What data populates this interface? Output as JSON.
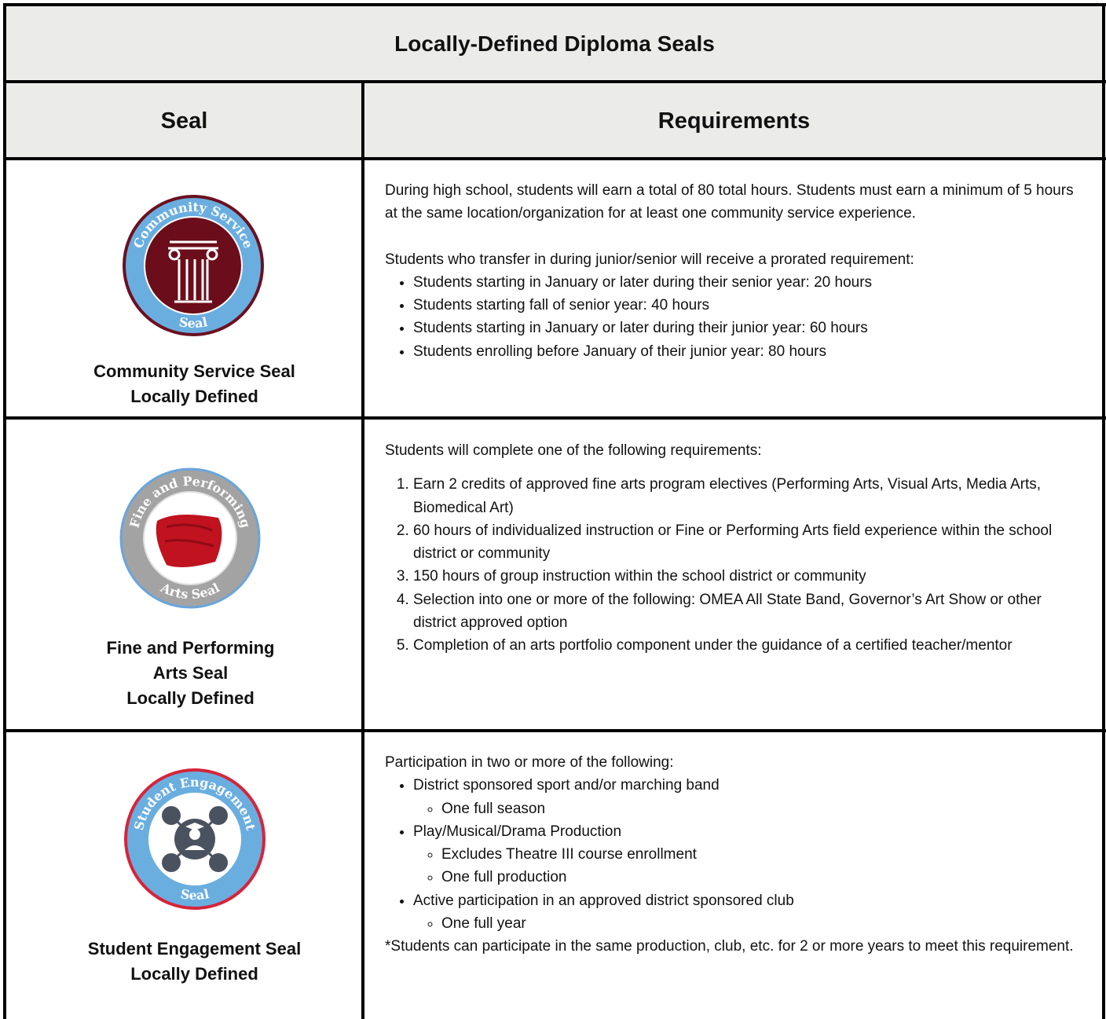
{
  "title": "Locally-Defined Diploma Seals",
  "columns": [
    "Seal",
    "Requirements"
  ],
  "rows": [
    {
      "badge": {
        "top": "Community Service",
        "bottom": "Seal"
      },
      "name": [
        "Community Service Seal",
        "Locally Defined"
      ],
      "requirements": {
        "paragraph": "During high school, students will earn a total of 80 total hours. Students must earn a minimum of 5 hours at the same location/organization for at least one community service experience.",
        "intro": "Students who transfer in during junior/senior will receive a prorated requirement:",
        "items": [
          "Students starting in January or later during their senior year: 20 hours",
          "Students starting fall of senior year: 40 hours",
          "Students starting in January or later during their junior year: 60 hours",
          "Students enrolling before January of their junior year: 80 hours"
        ]
      }
    },
    {
      "badge": {
        "top": "Fine and Performing",
        "bottom": "Arts Seal"
      },
      "name": [
        "Fine and Performing",
        "Arts Seal",
        "Locally Defined"
      ],
      "requirements": {
        "intro": "Students will complete one of the following requirements:",
        "items": [
          "Earn 2 credits of approved fine arts program electives (Performing Arts, Visual Arts, Media Arts, Biomedical Art)",
          "60 hours of individualized instruction or Fine or Performing Arts field experience within the school district or community",
          "150 hours of group instruction within the school district or community",
          "Selection into one or more of the following: OMEA All State Band, Governor’s Art Show or other district approved option",
          "Completion of an arts portfolio component under the guidance of a certified teacher/mentor"
        ]
      }
    },
    {
      "badge": {
        "top": "Student Engagement",
        "bottom": "Seal"
      },
      "name": [
        "Student Engagement Seal",
        "Locally Defined"
      ],
      "requirements": {
        "intro": "Participation in two or more of the following:",
        "items": [
          {
            "text": "District sponsored sport and/or marching band",
            "sub": [
              "One full season"
            ]
          },
          {
            "text": "Play/Musical/Drama Production",
            "sub": [
              "Excludes Theatre III course enrollment",
              "One full production"
            ]
          },
          {
            "text": "Active participation in an approved district sponsored club",
            "sub": [
              "One full year"
            ]
          }
        ],
        "note": "*Students can participate in the same production, club, etc. for 2 or more years to meet this requirement."
      }
    }
  ]
}
